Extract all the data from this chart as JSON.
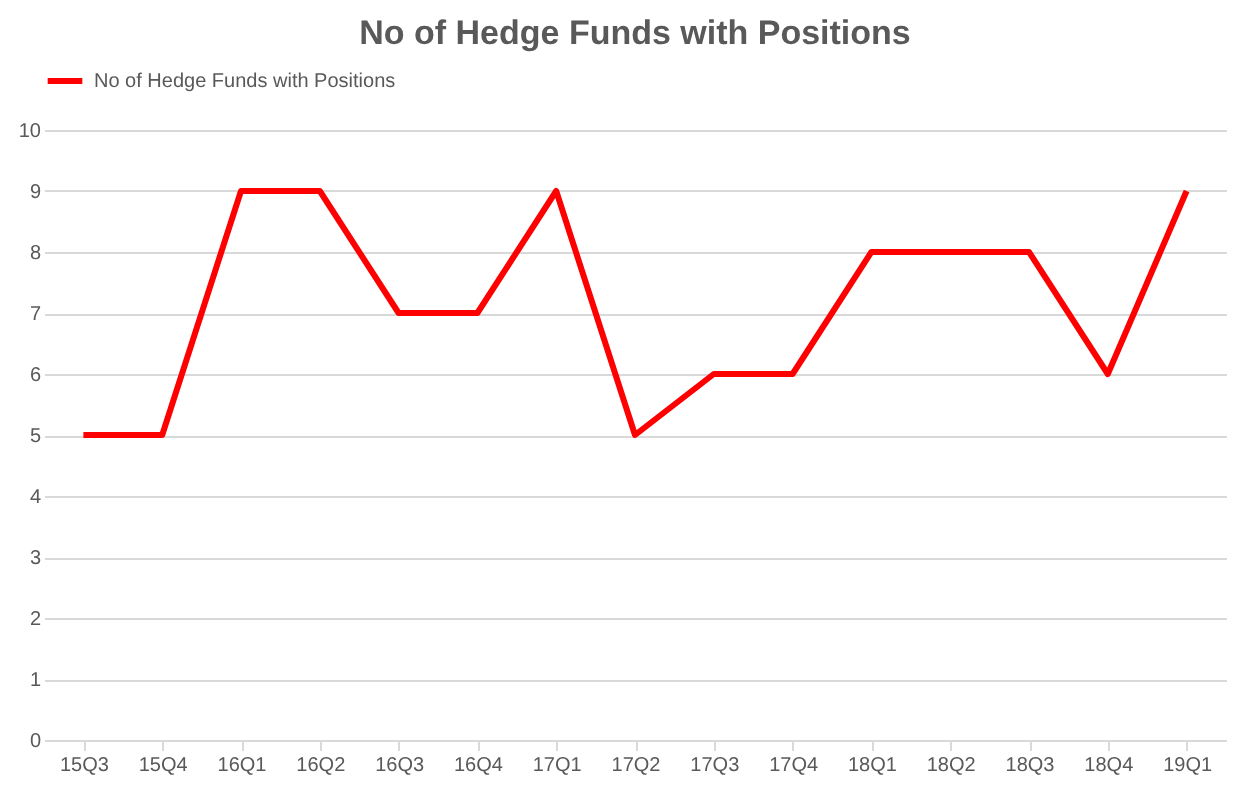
{
  "chart_data": {
    "type": "line",
    "title": "No of Hedge Funds with Positions",
    "categories": [
      "15Q3",
      "15Q4",
      "16Q1",
      "16Q2",
      "16Q3",
      "16Q4",
      "17Q1",
      "17Q2",
      "17Q3",
      "17Q4",
      "18Q1",
      "18Q2",
      "18Q3",
      "18Q4",
      "19Q1"
    ],
    "series": [
      {
        "name": "No of Hedge Funds with Positions",
        "color": "#ff0000",
        "values": [
          5,
          5,
          9,
          9,
          7,
          7,
          9,
          5,
          6,
          6,
          8,
          8,
          8,
          6,
          9
        ]
      }
    ],
    "ylim": [
      0,
      10
    ],
    "yticks": [
      0,
      1,
      2,
      3,
      4,
      5,
      6,
      7,
      8,
      9,
      10
    ],
    "grid": "y",
    "legend": "top",
    "marker": "none",
    "line_style": "solid"
  }
}
